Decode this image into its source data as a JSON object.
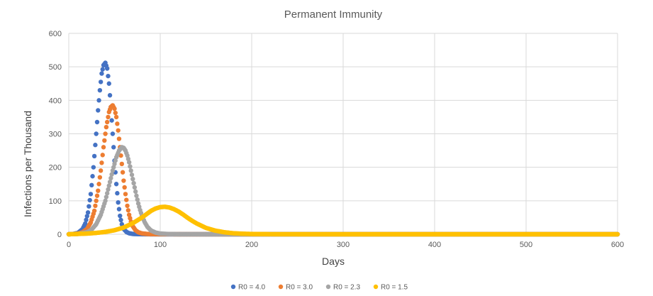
{
  "chart_data": {
    "type": "scatter",
    "title": "Permanent Immunity",
    "xlabel": "Days",
    "ylabel": "Infections per Thousand",
    "xlim": [
      0,
      600
    ],
    "ylim": [
      0,
      600
    ],
    "x_ticks": [
      "0",
      "100",
      "200",
      "300",
      "400",
      "500",
      "600"
    ],
    "y_ticks": [
      "0",
      "100",
      "200",
      "300",
      "400",
      "500",
      "600"
    ],
    "grid": true,
    "legend_position": "bottom",
    "series": [
      {
        "name": "R0 = 4.0",
        "color": "#4472c4",
        "x": [
          0,
          5,
          10,
          15,
          18,
          21,
          24,
          27,
          30,
          32,
          34,
          36,
          38,
          40,
          42,
          44,
          46,
          48,
          50,
          52,
          54,
          56,
          58,
          60,
          63,
          66,
          70,
          75,
          80,
          90,
          100,
          120,
          150,
          200,
          300,
          400,
          500,
          600
        ],
        "y": [
          0,
          1,
          4,
          15,
          32,
          65,
          120,
          200,
          300,
          370,
          430,
          480,
          505,
          512,
          495,
          450,
          380,
          300,
          220,
          150,
          95,
          55,
          30,
          16,
          7,
          3,
          1,
          0.5,
          0.2,
          0,
          0,
          0,
          0,
          0,
          0,
          0,
          0,
          0
        ]
      },
      {
        "name": "R0 = 3.0",
        "color": "#ed7d31",
        "x": [
          0,
          5,
          10,
          15,
          20,
          24,
          28,
          32,
          35,
          38,
          41,
          44,
          46,
          48,
          50,
          52,
          54,
          56,
          58,
          60,
          62,
          64,
          66,
          68,
          70,
          73,
          76,
          80,
          85,
          90,
          100,
          120,
          150,
          200,
          300,
          400,
          500,
          600
        ],
        "y": [
          0,
          0.5,
          2,
          6,
          16,
          35,
          70,
          130,
          190,
          260,
          320,
          365,
          380,
          385,
          375,
          350,
          310,
          260,
          210,
          160,
          120,
          85,
          58,
          38,
          24,
          12,
          6,
          2.5,
          1,
          0.4,
          0.1,
          0,
          0,
          0,
          0,
          0,
          0,
          0
        ]
      },
      {
        "name": "R0 = 2.3",
        "color": "#a5a5a5",
        "x": [
          0,
          10,
          20,
          25,
          30,
          35,
          40,
          44,
          48,
          52,
          55,
          58,
          60,
          62,
          64,
          66,
          68,
          70,
          72,
          74,
          76,
          78,
          80,
          83,
          86,
          90,
          95,
          100,
          110,
          120,
          150,
          200,
          300,
          400,
          500,
          600
        ],
        "y": [
          0,
          1,
          6,
          14,
          30,
          58,
          100,
          145,
          190,
          230,
          250,
          260,
          258,
          250,
          235,
          215,
          190,
          165,
          140,
          115,
          92,
          72,
          55,
          36,
          22,
          11,
          5,
          2,
          0.5,
          0.1,
          0,
          0,
          0,
          0,
          0,
          0
        ]
      },
      {
        "name": "R0 = 1.5",
        "color": "#ffc000",
        "x": [
          0,
          10,
          20,
          30,
          40,
          50,
          60,
          70,
          80,
          85,
          90,
          95,
          100,
          105,
          110,
          115,
          120,
          125,
          130,
          135,
          140,
          150,
          160,
          170,
          180,
          190,
          200,
          220,
          240,
          260,
          300,
          400,
          500,
          600
        ],
        "y": [
          0,
          1,
          2,
          4,
          7,
          12,
          20,
          33,
          50,
          60,
          70,
          77,
          81,
          82,
          80,
          75,
          68,
          59,
          49,
          40,
          32,
          19,
          11,
          6,
          3,
          1.6,
          0.8,
          0.2,
          0.05,
          0,
          0,
          0,
          0,
          0
        ]
      }
    ]
  }
}
